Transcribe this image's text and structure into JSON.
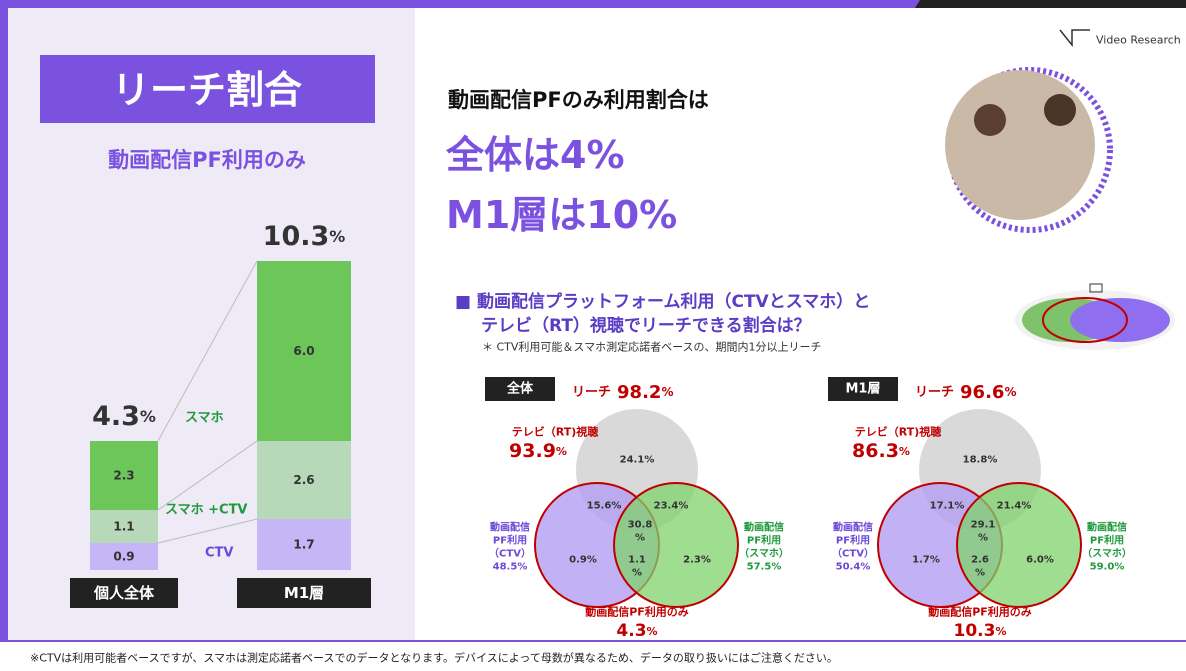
{
  "logo": "Video Research",
  "left": {
    "title": "リーチ割合",
    "subtitle": "動画配信PF利用のみ"
  },
  "headline": {
    "lead": "動画配信PFのみ利用割合は",
    "line1": "全体は4%",
    "line2": "M1層は10%"
  },
  "section": {
    "line1": "■  動画配信プラットフォーム利用（CTVとスマホ）と",
    "line2": "テレビ（RT）視聴でリーチできる割合は？",
    "note": "＊ CTV利用可能＆スマホ測定応諾者ベースの、期間内1分以上リーチ"
  },
  "chart_data": {
    "type": "bar",
    "stacked": true,
    "categories": [
      "個人全体",
      "M1層"
    ],
    "totals": [
      4.3,
      10.3
    ],
    "total_unit": "%",
    "series": [
      {
        "name": "CTV",
        "color": "#c7b6f6",
        "values": [
          0.9,
          1.7
        ]
      },
      {
        "name": "スマホ +CTV",
        "color": "#b7d9b9",
        "values": [
          1.1,
          2.6
        ]
      },
      {
        "name": "スマホ",
        "color": "#6dc65a",
        "values": [
          2.3,
          6.0
        ],
        "value_labels": [
          "2.3",
          "6.0"
        ]
      }
    ]
  },
  "venns": [
    {
      "badge": "全体",
      "reach_label": "リーチ",
      "reach_value": 98.2,
      "unit": "%",
      "tv_label": "テレビ（RT)視聴",
      "tv_value": 93.9,
      "ctv_label": [
        "動画配信",
        "PF利用",
        "（CTV）"
      ],
      "ctv_value": "48.5%",
      "sp_label": [
        "動画配信",
        "PF利用",
        "（スマホ）"
      ],
      "sp_value": "57.5%",
      "regions": {
        "tv_only": "24.1%",
        "tv_ctv": "15.6%",
        "tv_sp": "23.4%",
        "all": [
          "30.8",
          "%"
        ],
        "ctv_only": "0.9%",
        "ctv_sp": [
          "1.1",
          "%"
        ],
        "sp_only": "2.3%"
      },
      "pf_only_label": "動画配信PF利用のみ",
      "pf_only_value": 4.3
    },
    {
      "badge": "M1層",
      "reach_label": "リーチ",
      "reach_value": 96.6,
      "unit": "%",
      "tv_label": "テレビ（RT)視聴",
      "tv_value": 86.3,
      "ctv_label": [
        "動画配信",
        "PF利用",
        "（CTV）"
      ],
      "ctv_value": "50.4%",
      "sp_label": [
        "動画配信",
        "PF利用",
        "（スマホ）"
      ],
      "sp_value": "59.0%",
      "regions": {
        "tv_only": "18.8%",
        "tv_ctv": "17.1%",
        "tv_sp": "21.4%",
        "all": [
          "29.1",
          "%"
        ],
        "ctv_only": "1.7%",
        "ctv_sp": [
          "2.6",
          "%"
        ],
        "sp_only": "6.0%"
      },
      "pf_only_label": "動画配信PF利用のみ",
      "pf_only_value": 10.3
    }
  ],
  "footnote": "※CTVは利用可能者ベースですが、スマホは測定応諾者ベースでのデータとなります。デバイスによって母数が異なるため、データの取り扱いにはご注意ください。"
}
